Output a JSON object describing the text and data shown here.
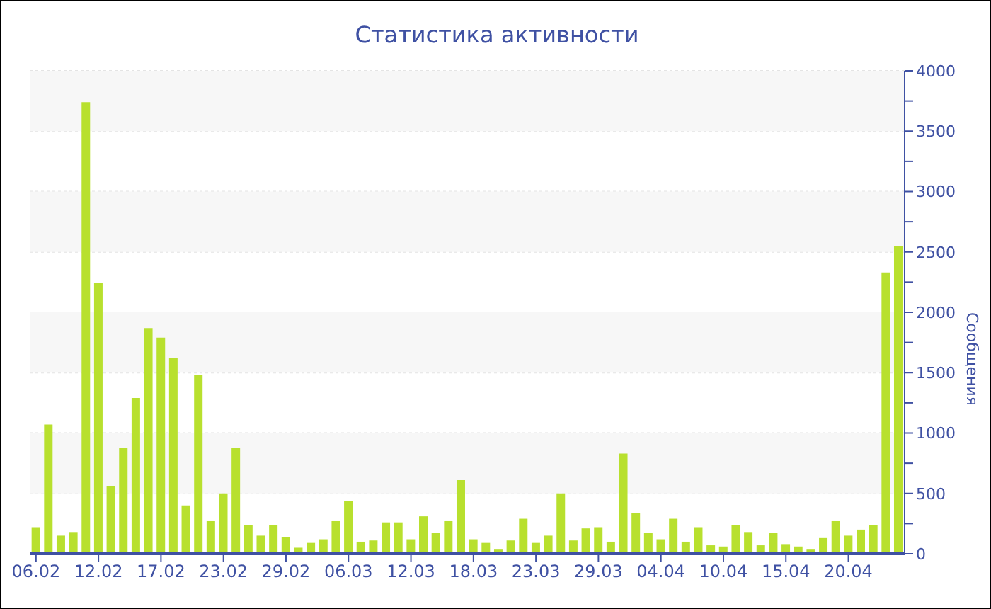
{
  "chart_data": {
    "type": "bar",
    "title": "Статистика активности",
    "ylabel": "Сообщения",
    "categories": [
      "06.02",
      null,
      null,
      null,
      null,
      "12.02",
      null,
      null,
      null,
      null,
      "17.02",
      null,
      null,
      null,
      null,
      "23.02",
      null,
      null,
      null,
      null,
      "29.02",
      null,
      null,
      null,
      null,
      "06.03",
      null,
      null,
      null,
      null,
      "12.03",
      null,
      null,
      null,
      null,
      "18.03",
      null,
      null,
      null,
      null,
      "23.03",
      null,
      null,
      null,
      null,
      "29.03",
      null,
      null,
      null,
      null,
      "04.04",
      null,
      null,
      null,
      null,
      "10.04",
      null,
      null,
      null,
      null,
      "15.04",
      null,
      null,
      null,
      null,
      "20.04",
      null,
      null,
      null,
      null
    ],
    "values": [
      220,
      1070,
      150,
      180,
      3740,
      2240,
      560,
      880,
      1290,
      1870,
      1790,
      1620,
      400,
      1480,
      270,
      500,
      880,
      240,
      150,
      240,
      140,
      50,
      90,
      120,
      270,
      440,
      100,
      110,
      260,
      260,
      120,
      310,
      170,
      270,
      610,
      120,
      90,
      40,
      110,
      290,
      90,
      150,
      500,
      110,
      210,
      220,
      100,
      830,
      340,
      170,
      120,
      290,
      100,
      220,
      70,
      60,
      240,
      180,
      70,
      170,
      80,
      60,
      40,
      130,
      270,
      150,
      200,
      240,
      2330,
      2550
    ],
    "color": "#b8e02e",
    "ylim": [
      0,
      4000
    ],
    "yticks": [
      0,
      {
        "value": 250,
        "label": null
      },
      500,
      {
        "value": 750,
        "label": null
      },
      1000,
      {
        "value": 1250,
        "label": null
      },
      1500,
      {
        "value": 1750,
        "label": null
      },
      2000,
      {
        "value": 2250,
        "label": null
      },
      2500,
      {
        "value": 2750,
        "label": null
      },
      3000,
      {
        "value": 3250,
        "label": null
      },
      3500,
      {
        "value": 3750,
        "label": null
      },
      4000
    ],
    "grid": "y"
  }
}
